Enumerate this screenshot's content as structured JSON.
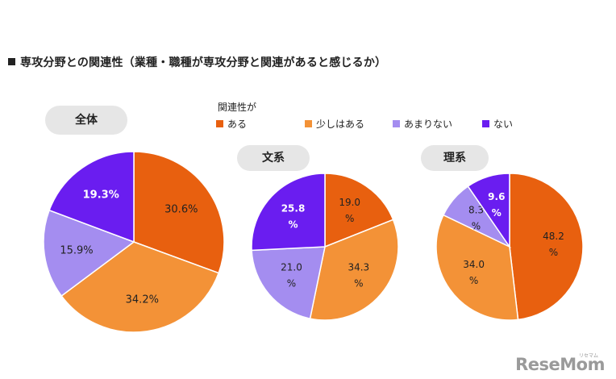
{
  "title": "専攻分野との関連性（業種・職種が専攻分野と関連があると感じるか）",
  "legend": {
    "title": "関連性が",
    "items": [
      {
        "label": "ある",
        "color": "#e8600f"
      },
      {
        "label": "少しはある",
        "color": "#f39237"
      },
      {
        "label": "あまりない",
        "color": "#a48df0"
      },
      {
        "label": "ない",
        "color": "#6a1df0"
      }
    ]
  },
  "logo": {
    "text": "ReseMom",
    "kana": "リセマム"
  },
  "chart_data": [
    {
      "type": "pie",
      "title": "全体",
      "categories": [
        "ある",
        "少しはある",
        "あまりない",
        "ない"
      ],
      "values": [
        30.6,
        34.2,
        15.9,
        19.3
      ],
      "labels": [
        "30.6%",
        "34.2%",
        "15.9%",
        "19.3%"
      ]
    },
    {
      "type": "pie",
      "title": "文系",
      "categories": [
        "ある",
        "少しはある",
        "あまりない",
        "ない"
      ],
      "values": [
        19.0,
        34.3,
        21.0,
        25.8
      ],
      "labels": [
        "19.0\n%",
        "34.3\n%",
        "21.0\n%",
        "25.8\n%"
      ]
    },
    {
      "type": "pie",
      "title": "理系",
      "categories": [
        "ある",
        "少しはある",
        "あまりない",
        "ない"
      ],
      "values": [
        48.2,
        34.0,
        8.3,
        9.6
      ],
      "labels": [
        "48.2\n%",
        "34.0\n%",
        "8.3\n%",
        "9.6\n%"
      ]
    }
  ]
}
